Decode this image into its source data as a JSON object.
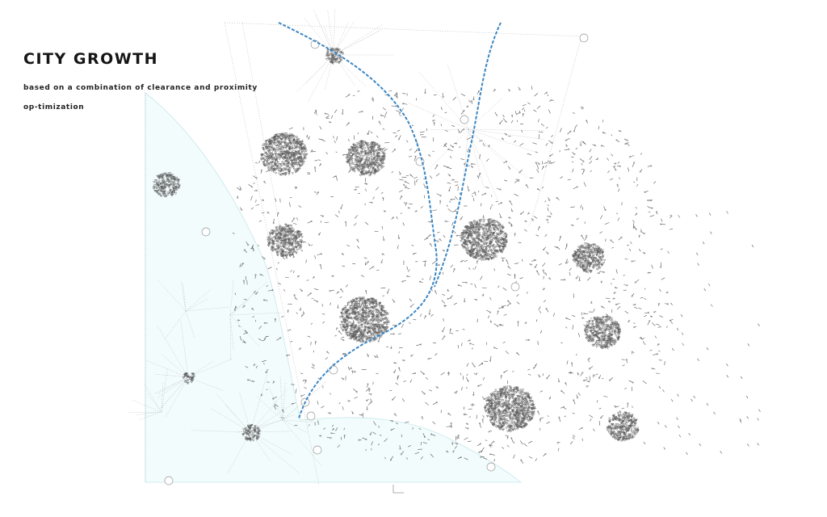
{
  "header": {
    "title": "CITY GROWTH",
    "subtitle": "based on a combination of clearance and proximity op-timization"
  },
  "colors": {
    "region_fill": "#f2fcfd",
    "region_stroke": "#bfe3e8",
    "route": "#3b86c4",
    "network": "#555555",
    "guide_lines": "#b0b0b0"
  }
}
